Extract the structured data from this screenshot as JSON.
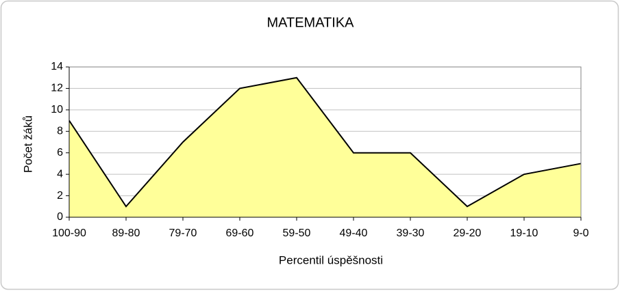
{
  "chart_data": {
    "type": "area",
    "title": "MATEMATIKA",
    "x_label": "Percentil úspěšnosti",
    "y_label": "Počet žáků",
    "categories": [
      "100-90",
      "89-80",
      "79-70",
      "69-60",
      "59-50",
      "49-40",
      "39-30",
      "29-20",
      "19-10",
      "9-0"
    ],
    "values": [
      9,
      1,
      7,
      12,
      13,
      6,
      6,
      1,
      4,
      5
    ],
    "color": "#ffff99",
    "line_color": "#000000",
    "ylim": [
      0,
      14
    ],
    "yticks": [
      0,
      2,
      4,
      6,
      8,
      10,
      12,
      14
    ],
    "grid": true
  }
}
